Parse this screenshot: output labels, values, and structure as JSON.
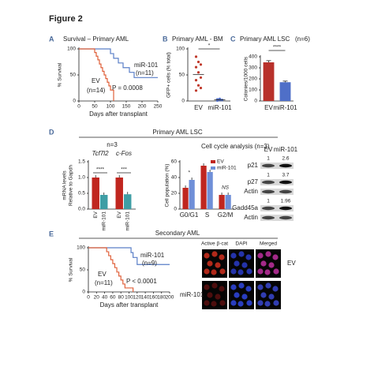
{
  "figure_title": "Figure 2",
  "panels": [
    "A",
    "B",
    "C",
    "D",
    "E"
  ],
  "section_titles": {
    "d": "Primary AML LSC",
    "e": "Secondary AML"
  },
  "chart_data": [
    {
      "type": "step",
      "title": "Survival – Primary AML",
      "x_label": "Days after transplant",
      "y_label": "% Survival",
      "xlim": [
        0,
        250
      ],
      "xticks": [
        0,
        50,
        100,
        150,
        200,
        250
      ],
      "ylim": [
        0,
        100
      ],
      "yticks": [
        0,
        50,
        100
      ],
      "p_value_label": "P = 0.0008",
      "series": [
        {
          "name": "miR-101",
          "n_label": "(n=11)",
          "color": "#5a7fc7",
          "x": [
            0,
            100,
            110,
            125,
            140,
            160,
            175,
            250
          ],
          "values": [
            100,
            91,
            82,
            73,
            64,
            55,
            45,
            45
          ]
        },
        {
          "name": "EV",
          "n_label": "(n=14)",
          "color": "#e0603a",
          "x": [
            0,
            50,
            55,
            60,
            65,
            70,
            75,
            80,
            85,
            90,
            95,
            100,
            110
          ],
          "values": [
            100,
            93,
            86,
            79,
            71,
            64,
            57,
            50,
            43,
            36,
            29,
            21,
            0
          ]
        }
      ]
    },
    {
      "type": "dot",
      "title": "Primary AML - BM",
      "y_label": "GFP+ cells (% total)",
      "categories": [
        "EV",
        "miR-101"
      ],
      "colors": [
        "#c0392b",
        "#4f6fc8"
      ],
      "values": [
        [
          85,
          75,
          70,
          65,
          55,
          45,
          40,
          30,
          25,
          20
        ],
        [
          3,
          2,
          2,
          1,
          4
        ]
      ],
      "means": [
        51,
        2.4
      ],
      "ylim": [
        0,
        100
      ],
      "yticks": [
        0,
        50,
        100
      ],
      "significance": "*"
    },
    {
      "type": "bar",
      "title": "Primary AML LSC",
      "n_label": "(n=6)",
      "y_label": "Colonies/1000 cells",
      "categories": [
        "EV",
        "miR-101"
      ],
      "colors": [
        "#b8312b",
        "#4f6fc8"
      ],
      "values": [
        350,
        170
      ],
      "errors": [
        15,
        10
      ],
      "ylim": [
        0,
        400
      ],
      "yticks": [
        0,
        100,
        200,
        300,
        400
      ],
      "significance": "****"
    },
    {
      "type": "grouped_bar",
      "n_label": "n=3",
      "y_label": [
        "mRNA levels",
        "Relative to Gapdh"
      ],
      "categories": [
        "Tcf7l2",
        "c-Fos"
      ],
      "series": [
        {
          "name": "EV",
          "color": "#c0261f",
          "values": [
            1.0,
            1.0
          ]
        },
        {
          "name": "miR-101",
          "color": "#3f9ea5",
          "values": [
            0.45,
            0.47
          ]
        }
      ],
      "ylim": [
        0,
        1.5
      ],
      "yticks": [
        {
          "value": 0,
          "label": "0.0"
        },
        {
          "value": 0.5,
          "label": "0.5"
        },
        {
          "value": 1,
          "label": "1.0"
        },
        {
          "value": 1.5,
          "label": "1.5"
        }
      ],
      "significance": [
        "****",
        "***"
      ]
    },
    {
      "type": "grouped_bar",
      "title": "Cell cycle analysis (n=3)",
      "y_label": "Cell population (%)",
      "categories": [
        "G0/G1",
        "S",
        "G2/M"
      ],
      "legend": true,
      "series": [
        {
          "name": "EV",
          "color": "#c0261f",
          "values": [
            27,
            55,
            18
          ]
        },
        {
          "name": "miR-101",
          "color": "#6f8fd8",
          "values": [
            37,
            47,
            18
          ]
        }
      ],
      "ylim": [
        0,
        60
      ],
      "yticks": [
        0,
        20,
        40,
        60
      ],
      "significance": [
        {
          "category": 0,
          "text": "*"
        },
        {
          "category": 2,
          "text": "NS"
        }
      ]
    },
    {
      "type": "step",
      "x_label": "Days after transplant",
      "y_label": "% Survival",
      "xlim": [
        0,
        200
      ],
      "xticks": [
        0,
        20,
        40,
        60,
        80,
        100,
        120,
        140,
        160,
        180,
        200
      ],
      "ylim": [
        0,
        100
      ],
      "yticks": [
        0,
        50,
        100
      ],
      "p_value_label": "P < 0.0001",
      "series": [
        {
          "name": "miR-101",
          "n_label": "(n=9)",
          "color": "#5a7fc7",
          "x": [
            0,
            105,
            110,
            120,
            200
          ],
          "values": [
            100,
            89,
            78,
            62,
            62
          ]
        },
        {
          "name": "EV",
          "n_label": "(n=11)",
          "color": "#e0603a",
          "x": [
            0,
            45,
            50,
            55,
            60,
            65,
            70,
            75,
            80,
            85,
            90,
            110
          ],
          "values": [
            100,
            91,
            82,
            73,
            64,
            55,
            45,
            36,
            27,
            18,
            9,
            0
          ]
        }
      ]
    }
  ],
  "western_blot": {
    "columns": [
      "EV",
      "miR-101"
    ],
    "rows": [
      {
        "label": "p21",
        "quant": [
          1,
          2.6
        ]
      },
      {
        "label": "p27",
        "quant": [
          1,
          3.7
        ]
      },
      {
        "label": "Actin"
      },
      {
        "label": "Gadd45a",
        "quant": [
          1,
          1.96
        ]
      },
      {
        "label": "Actin"
      }
    ]
  },
  "microscopy": {
    "columns": [
      "Active β-cat",
      "DAPI",
      "Merged"
    ],
    "rows": [
      "EV",
      "miR-101"
    ]
  }
}
